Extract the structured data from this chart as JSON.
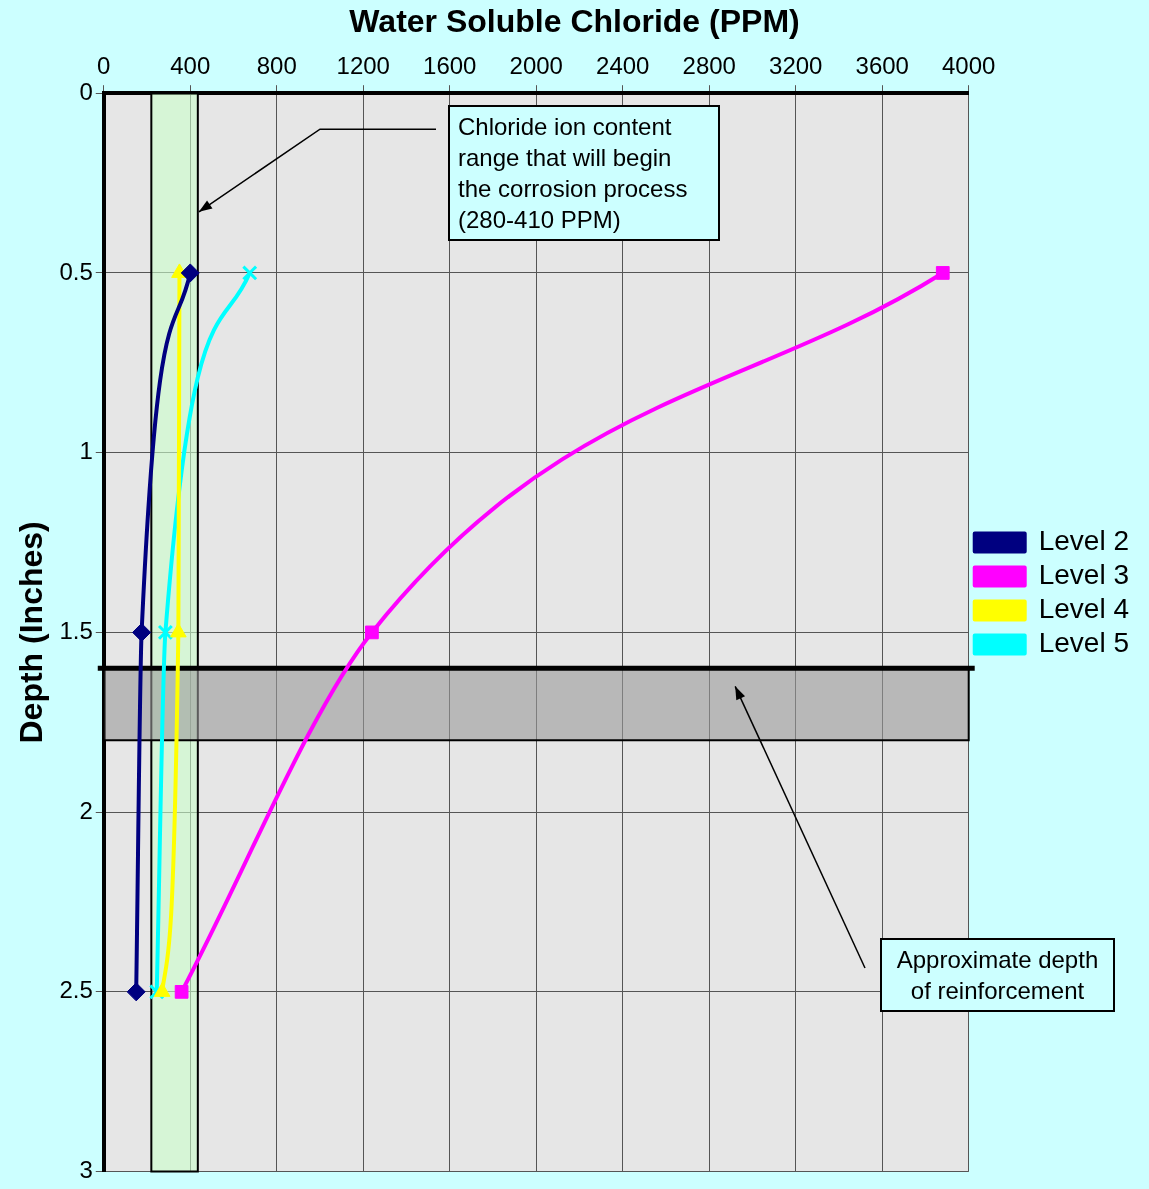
{
  "chart_data": {
    "type": "line",
    "title": "Water Soluble Chloride (PPM)",
    "ylabel": "Depth (Inches)",
    "series": [
      {
        "name": "Level 2",
        "color": "#000080",
        "marker": "diamond",
        "x": [
          400,
          175,
          150
        ],
        "values": [
          0.5,
          1.5,
          2.5
        ]
      },
      {
        "name": "Level 3",
        "color": "#ff00ff",
        "marker": "square",
        "x": [
          3880,
          1240,
          360
        ],
        "values": [
          0.5,
          1.5,
          2.5
        ]
      },
      {
        "name": "Level 4",
        "color": "#ffff00",
        "marker": "triangle",
        "x": [
          350,
          345,
          270
        ],
        "values": [
          0.5,
          1.5,
          2.5
        ]
      },
      {
        "name": "Level 5",
        "color": "#00ffff",
        "marker": "cross",
        "x": [
          675,
          285,
          245
        ],
        "values": [
          0.5,
          1.5,
          2.5
        ]
      }
    ],
    "xlim": [
      0,
      4000
    ],
    "xticks": [
      0,
      400,
      800,
      1200,
      1600,
      2000,
      2400,
      2800,
      3200,
      3600,
      4000
    ],
    "ylim": [
      3,
      0
    ],
    "yticks": [
      0,
      0.5,
      1,
      1.5,
      2,
      2.5,
      3
    ],
    "grid": true,
    "legend": "right",
    "annotations": [
      {
        "text": "Chloride ion content range that will begin the corrosion process (280-410 PPM)",
        "x": 440,
        "y": 0.33
      },
      "Approximate depth of reinforcement"
    ],
    "ref_lines": [
      {
        "axis": "y",
        "value": 1.6,
        "color": "#000000"
      }
    ],
    "bands": [
      {
        "axis": "x",
        "from": 220,
        "to": 435,
        "color": "#ccffcc"
      },
      {
        "axis": "y",
        "from": 1.6,
        "to": 1.8,
        "color": "#999999"
      }
    ]
  }
}
